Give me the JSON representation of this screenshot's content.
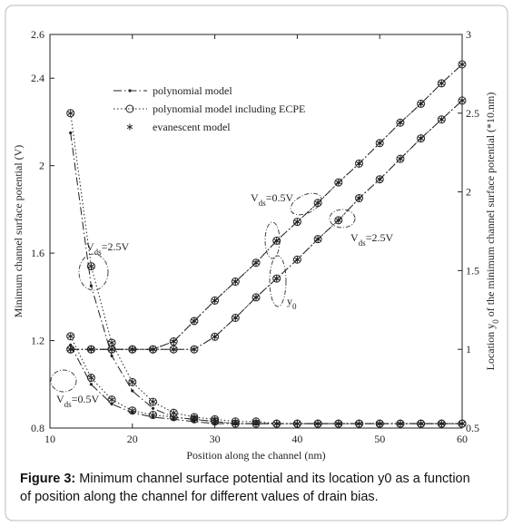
{
  "chart_data": {
    "type": "line",
    "x_label": "Position along the channel (nm)",
    "y_label": "Minimum channel surface potential (V)",
    "y2_label": [
      "Location y",
      "0",
      " of the minimum channel surface potential (*10.nm)"
    ],
    "caption": [
      "Figure 3:",
      " Minimum channel surface potential and its location y0 as a function",
      "of position along the channel for different values of drain bias."
    ],
    "xlim": [
      10,
      60
    ],
    "xticks": [
      10,
      20,
      30,
      40,
      50,
      60
    ],
    "ylim": [
      0.8,
      2.6
    ],
    "yticks": [
      0.8,
      1.2,
      1.6,
      2,
      2.4,
      2.6
    ],
    "y2lim": [
      0.5,
      3
    ],
    "y2ticks": [
      0.5,
      1,
      1.5,
      2,
      2.5,
      3
    ],
    "x": [
      12.5,
      15,
      17.5,
      20,
      22.5,
      25,
      27.5,
      30,
      32.5,
      35,
      37.5,
      40,
      42.5,
      45,
      47.5,
      50,
      52.5,
      55,
      57.5,
      60
    ],
    "annotations": [
      {
        "text": "V",
        "sub": "ds",
        "rest": "=0.5V"
      },
      {
        "text": "V",
        "sub": "ds",
        "rest": "=2.5V"
      },
      {
        "text": "V",
        "sub": "ds",
        "rest": "=2.5V"
      },
      {
        "text": "V",
        "sub": "ds",
        "rest": "=0.5V"
      },
      {
        "text": "y",
        "sub": "0"
      }
    ],
    "series": [
      {
        "name": "polynomial model",
        "color": "#222",
        "line": "dashdot",
        "marker": "dot",
        "curves": [
          {
            "axis": "y",
            "values": [
              2.15,
              1.45,
              1.13,
              0.97,
              0.89,
              0.85,
              0.84,
              0.83,
              0.82,
              0.82,
              0.82,
              0.82,
              0.82,
              0.82,
              0.82,
              0.82,
              0.82,
              0.82,
              0.82,
              0.82
            ]
          },
          {
            "axis": "y",
            "values": [
              1.18,
              1.0,
              0.91,
              0.87,
              0.85,
              0.84,
              0.83,
              0.82,
              0.82,
              0.82,
              0.82,
              0.82,
              0.82,
              0.82,
              0.82,
              0.82,
              0.82,
              0.82,
              0.82,
              0.82
            ]
          },
          {
            "axis": "y2",
            "values": [
              1,
              1,
              1,
              1,
              1,
              1.05,
              1.18,
              1.31,
              1.43,
              1.55,
              1.69,
              1.81,
              1.93,
              2.06,
              2.18,
              2.31,
              2.44,
              2.56,
              2.69,
              2.81
            ]
          },
          {
            "axis": "y2",
            "values": [
              1,
              1,
              1,
              1,
              1,
              1,
              1,
              1.08,
              1.2,
              1.33,
              1.45,
              1.57,
              1.7,
              1.82,
              1.96,
              2.08,
              2.21,
              2.34,
              2.46,
              2.58
            ]
          }
        ]
      },
      {
        "name": "polynomial model including ECPE",
        "color": "#222",
        "line": "dotted",
        "marker": "circle",
        "curves": [
          {
            "axis": "y",
            "values": [
              2.24,
              1.54,
              1.19,
              1.01,
              0.92,
              0.87,
              0.85,
              0.84,
              0.83,
              0.83,
              0.82,
              0.82,
              0.82,
              0.82,
              0.82,
              0.82,
              0.82,
              0.82,
              0.82,
              0.82
            ]
          },
          {
            "axis": "y",
            "values": [
              1.22,
              1.03,
              0.93,
              0.88,
              0.86,
              0.85,
              0.84,
              0.83,
              0.82,
              0.82,
              0.82,
              0.82,
              0.82,
              0.82,
              0.82,
              0.82,
              0.82,
              0.82,
              0.82,
              0.82
            ]
          },
          {
            "axis": "y2",
            "values": [
              1,
              1,
              1,
              1,
              1,
              1.05,
              1.18,
              1.31,
              1.43,
              1.55,
              1.69,
              1.81,
              1.93,
              2.06,
              2.18,
              2.31,
              2.44,
              2.56,
              2.69,
              2.81
            ]
          },
          {
            "axis": "y2",
            "values": [
              1,
              1,
              1,
              1,
              1,
              1,
              1,
              1.08,
              1.2,
              1.33,
              1.45,
              1.57,
              1.7,
              1.82,
              1.96,
              2.08,
              2.21,
              2.34,
              2.46,
              2.58
            ]
          }
        ]
      },
      {
        "name": "evanescent model",
        "color": "#222",
        "line": "none",
        "marker": "asterisk",
        "curves": [
          {
            "axis": "y",
            "values": [
              2.24,
              1.54,
              1.19,
              1.01,
              0.92,
              0.87,
              0.85,
              0.84,
              0.83,
              0.83,
              0.82,
              0.82,
              0.82,
              0.82,
              0.82,
              0.82,
              0.82,
              0.82,
              0.82,
              0.82
            ]
          },
          {
            "axis": "y",
            "values": [
              1.22,
              1.03,
              0.93,
              0.88,
              0.86,
              0.85,
              0.84,
              0.83,
              0.82,
              0.82,
              0.82,
              0.82,
              0.82,
              0.82,
              0.82,
              0.82,
              0.82,
              0.82,
              0.82,
              0.82
            ]
          },
          {
            "axis": "y2",
            "values": [
              1,
              1,
              1,
              1,
              1,
              1.05,
              1.18,
              1.31,
              1.43,
              1.55,
              1.69,
              1.81,
              1.93,
              2.06,
              2.18,
              2.31,
              2.44,
              2.56,
              2.69,
              2.81
            ]
          },
          {
            "axis": "y2",
            "values": [
              1,
              1,
              1,
              1,
              1,
              1,
              1,
              1.08,
              1.2,
              1.33,
              1.45,
              1.57,
              1.7,
              1.82,
              1.96,
              2.08,
              2.21,
              2.34,
              2.46,
              2.58
            ]
          }
        ]
      }
    ]
  }
}
